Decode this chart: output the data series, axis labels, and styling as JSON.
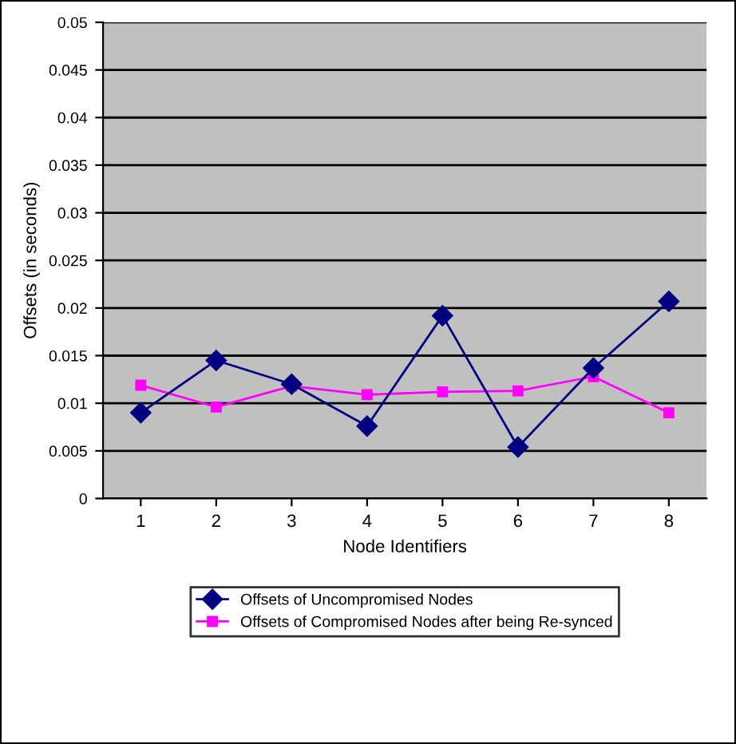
{
  "chart_data": {
    "type": "line",
    "xlabel": "Node Identifiers",
    "ylabel": "Offsets (in seconds)",
    "categories": [
      "1",
      "2",
      "3",
      "4",
      "5",
      "6",
      "7",
      "8"
    ],
    "series": [
      {
        "name": "Offsets of Uncompromised Nodes",
        "color": "#000080",
        "marker": "diamond",
        "values": [
          0.009,
          0.0145,
          0.012,
          0.0076,
          0.0192,
          0.0054,
          0.0137,
          0.0207
        ]
      },
      {
        "name": "Offsets of Compromised Nodes after being Re-synced",
        "color": "#ff00ff",
        "marker": "square",
        "values": [
          0.0119,
          0.0096,
          0.0118,
          0.0109,
          0.0112,
          0.0113,
          0.0128,
          0.009
        ]
      }
    ],
    "ylim": [
      0,
      0.05
    ],
    "yticks": [
      0,
      0.005,
      0.01,
      0.015,
      0.02,
      0.025,
      0.03,
      0.035,
      0.04,
      0.045,
      0.05
    ],
    "grid": "y",
    "legend": "bottom"
  }
}
